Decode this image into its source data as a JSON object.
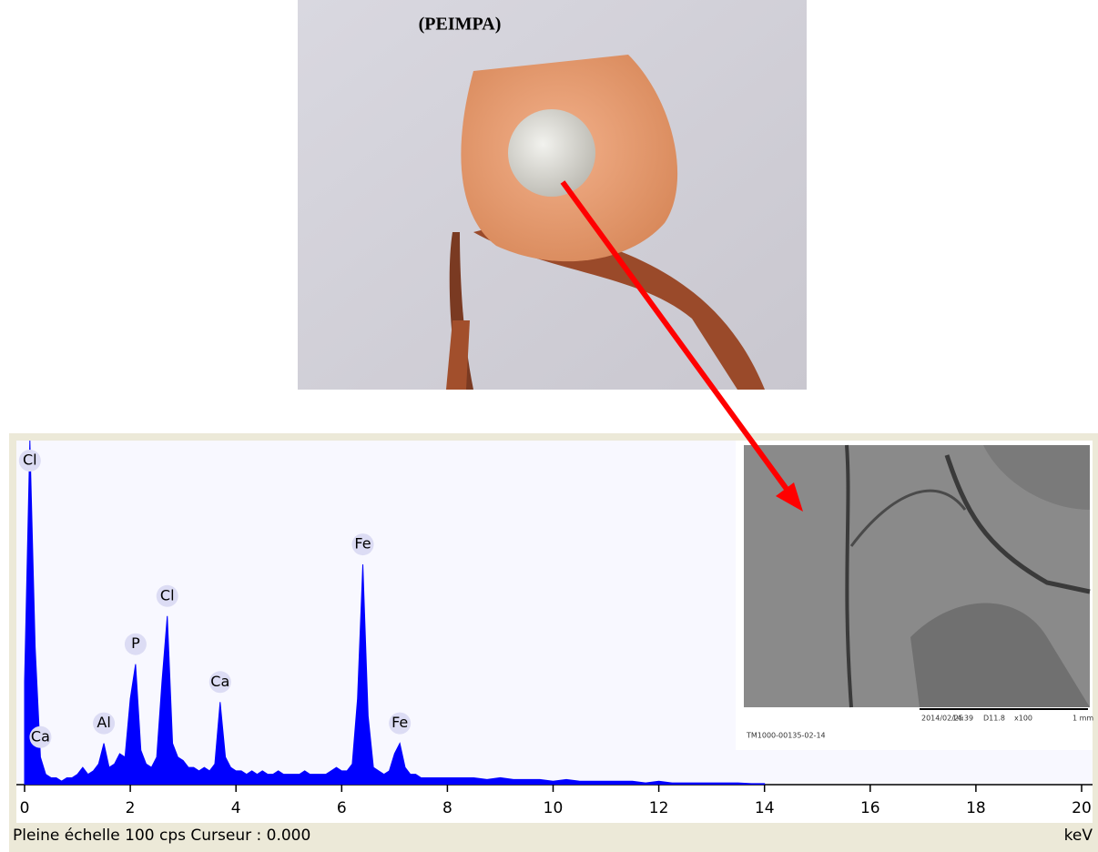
{
  "photo": {
    "title": "(PEIMPA)"
  },
  "sem_image": {
    "info": [
      "2014/02/25",
      "14:39",
      "D11.8",
      "x100",
      "1 mm"
    ],
    "id": "TM1000-00135-02-14"
  },
  "status_bar": {
    "left": "Pleine échelle 100 cps  Curseur : 0.000"
  },
  "chart_data": {
    "type": "area",
    "color": "#0000ff",
    "x_unit": "keV",
    "x": [
      0.0,
      0.1,
      0.2,
      0.3,
      0.4,
      0.5,
      0.6,
      0.7,
      0.8,
      0.9,
      1.0,
      1.1,
      1.2,
      1.3,
      1.4,
      1.5,
      1.6,
      1.7,
      1.8,
      1.9,
      2.0,
      2.1,
      2.2,
      2.3,
      2.4,
      2.5,
      2.6,
      2.7,
      2.8,
      2.9,
      3.0,
      3.1,
      3.2,
      3.3,
      3.4,
      3.5,
      3.6,
      3.7,
      3.8,
      3.9,
      4.0,
      4.1,
      4.2,
      4.3,
      4.4,
      4.5,
      4.6,
      4.7,
      4.8,
      4.9,
      5.0,
      5.1,
      5.2,
      5.3,
      5.4,
      5.5,
      5.6,
      5.7,
      5.8,
      5.9,
      6.0,
      6.1,
      6.2,
      6.3,
      6.4,
      6.5,
      6.6,
      6.7,
      6.8,
      6.9,
      7.0,
      7.1,
      7.2,
      7.3,
      7.4,
      7.5,
      7.6,
      7.7,
      7.8,
      7.9,
      8.0,
      8.25,
      8.5,
      8.75,
      9.0,
      9.25,
      9.5,
      9.75,
      10.0,
      10.25,
      10.5,
      10.75,
      11.0,
      11.25,
      11.5,
      11.75,
      12.0,
      12.25,
      12.5,
      12.75,
      13.0,
      13.25,
      13.5,
      13.75,
      14.0
    ],
    "values": [
      30,
      100,
      40,
      8,
      3,
      2,
      2,
      1,
      2,
      2,
      3,
      5,
      3,
      4,
      6,
      12,
      5,
      6,
      9,
      8,
      25,
      35,
      10,
      6,
      5,
      8,
      30,
      49,
      12,
      8,
      7,
      5,
      5,
      4,
      5,
      4,
      6,
      24,
      8,
      5,
      4,
      4,
      3,
      4,
      3,
      4,
      3,
      3,
      4,
      3,
      3,
      3,
      3,
      4,
      3,
      3,
      3,
      3,
      4,
      5,
      4,
      4,
      6,
      25,
      64,
      20,
      5,
      4,
      3,
      4,
      9,
      12,
      5,
      3,
      3,
      2,
      2,
      2,
      2,
      2,
      2,
      2,
      2,
      1.5,
      2,
      1.5,
      1.5,
      1.5,
      1,
      1.5,
      1,
      1,
      1,
      1,
      1,
      0.5,
      1,
      0.5,
      0.5,
      0.5,
      0.5,
      0.5,
      0.5,
      0.3,
      0.3
    ],
    "peaks": [
      {
        "label": "Cl",
        "x": 0.1
      },
      {
        "label": "Ca",
        "x": 0.3
      },
      {
        "label": "Al",
        "x": 1.5
      },
      {
        "label": "P",
        "x": 2.1
      },
      {
        "label": "Cl",
        "x": 2.7
      },
      {
        "label": "Ca",
        "x": 3.7
      },
      {
        "label": "Fe",
        "x": 6.4
      },
      {
        "label": "Fe",
        "x": 7.1
      }
    ],
    "xlim": [
      0,
      20
    ],
    "xticks": [
      0,
      2,
      4,
      6,
      8,
      10,
      12,
      14,
      16,
      18,
      20
    ],
    "ylim": [
      0,
      100
    ]
  }
}
